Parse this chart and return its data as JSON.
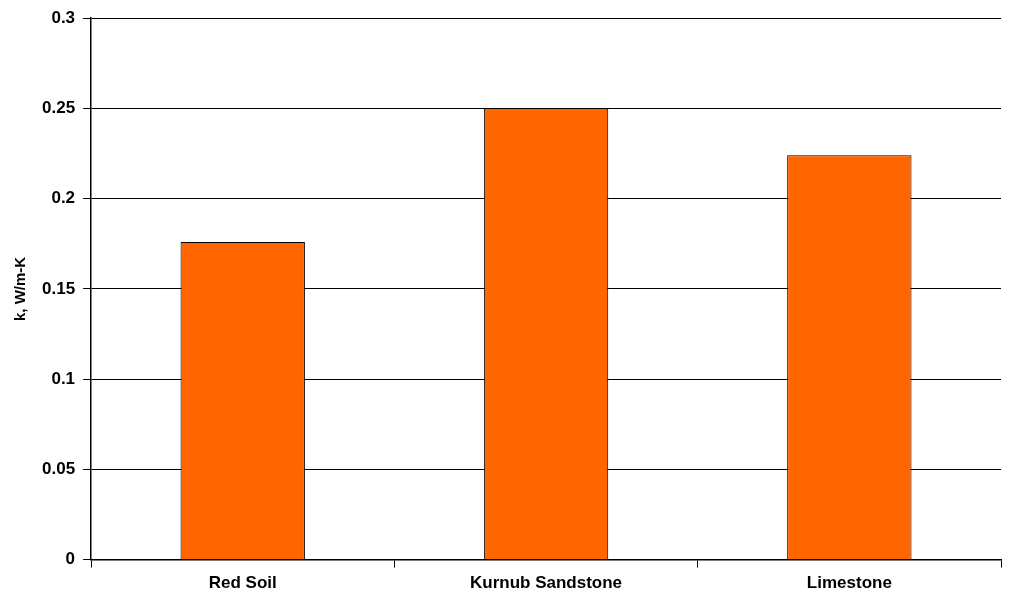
{
  "chart_data": {
    "type": "bar",
    "ylabel": "k, W/m-K",
    "categories": [
      "Red Soil",
      "Kurnub Sandstone",
      "Limestone"
    ],
    "values": [
      0.176,
      0.25,
      0.224
    ],
    "color": "#ff6600",
    "ylim": [
      0,
      0.3
    ],
    "yticks": [
      0,
      0.05,
      0.1,
      0.15,
      0.2,
      0.25,
      0.3
    ],
    "grid": "y",
    "legend": false
  }
}
